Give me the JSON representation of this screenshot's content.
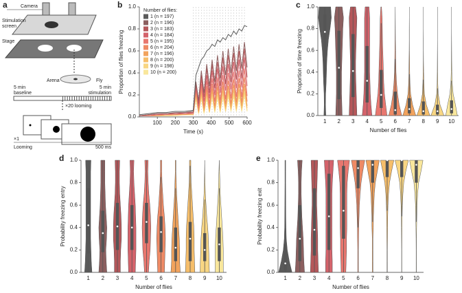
{
  "diagram": {
    "label": "a",
    "camera": "Camera",
    "screen_1": "Stimulation",
    "screen_2": "screen",
    "stage": "Stage",
    "arena": "Arena",
    "fly": "Fly",
    "baseline_1": "5 min",
    "baseline_2": "baseline",
    "stim_1": "5 min",
    "stim_2": "stimulation",
    "repeat": "×20 looming",
    "once": "×1",
    "looming": "Looming",
    "duration": "500 ms"
  },
  "chart_data": [
    {
      "type": "line",
      "label": "b",
      "xlabel": "Time (s)",
      "ylabel": "Proportion of flies freezing",
      "legend_title": "Number of flies:",
      "x": [
        0,
        50,
        100,
        150,
        200,
        250,
        300,
        315,
        330,
        345,
        360,
        375,
        390,
        405,
        420,
        435,
        450,
        465,
        480,
        495,
        510,
        525,
        540,
        555,
        570,
        585,
        600
      ],
      "xlim": [
        0,
        600
      ],
      "xticks": [
        100,
        200,
        300,
        400,
        500,
        600
      ],
      "ylim": [
        0,
        1
      ],
      "yticks": [
        {
          "value": 0,
          "label": "0.0"
        },
        0.2,
        0.4,
        0.6,
        0.8,
        {
          "value": 1,
          "label": "1.0"
        }
      ],
      "stimulus_x": [
        300,
        315,
        330,
        345,
        360,
        375,
        390,
        405,
        420,
        435,
        450,
        465,
        480,
        495,
        510,
        525,
        540,
        555,
        570,
        585
      ],
      "series": [
        {
          "name": "1 (n = 197)",
          "color": "#5a5a5a",
          "values": [
            0.02,
            0.03,
            0.04,
            0.04,
            0.05,
            0.05,
            0.06,
            0.38,
            0.45,
            0.52,
            0.55,
            0.6,
            0.62,
            0.66,
            0.64,
            0.7,
            0.68,
            0.72,
            0.7,
            0.75,
            0.73,
            0.78,
            0.75,
            0.8,
            0.78,
            0.83,
            0.82
          ]
        },
        {
          "name": "2 (n = 196)",
          "color": "#8c5f5f",
          "values": [
            0.01,
            0.02,
            0.03,
            0.03,
            0.04,
            0.04,
            0.05,
            0.32,
            0.15,
            0.42,
            0.22,
            0.48,
            0.28,
            0.52,
            0.32,
            0.56,
            0.35,
            0.6,
            0.38,
            0.62,
            0.4,
            0.64,
            0.42,
            0.66,
            0.44,
            0.68,
            0.45
          ]
        },
        {
          "name": "3 (n = 183)",
          "color": "#b5575a",
          "values": [
            0.01,
            0.02,
            0.03,
            0.03,
            0.03,
            0.04,
            0.04,
            0.3,
            0.12,
            0.38,
            0.18,
            0.44,
            0.22,
            0.48,
            0.26,
            0.5,
            0.28,
            0.54,
            0.3,
            0.56,
            0.32,
            0.58,
            0.34,
            0.6,
            0.35,
            0.62,
            0.36
          ]
        },
        {
          "name": "4 (n = 184)",
          "color": "#d4636b",
          "values": [
            0.01,
            0.02,
            0.02,
            0.03,
            0.03,
            0.03,
            0.04,
            0.28,
            0.1,
            0.34,
            0.14,
            0.38,
            0.17,
            0.42,
            0.2,
            0.44,
            0.22,
            0.46,
            0.24,
            0.48,
            0.25,
            0.5,
            0.26,
            0.52,
            0.27,
            0.54,
            0.28
          ]
        },
        {
          "name": "5 (n = 195)",
          "color": "#e8776f",
          "values": [
            0.01,
            0.01,
            0.02,
            0.02,
            0.03,
            0.03,
            0.03,
            0.26,
            0.08,
            0.3,
            0.1,
            0.33,
            0.12,
            0.35,
            0.14,
            0.36,
            0.15,
            0.38,
            0.16,
            0.4,
            0.17,
            0.41,
            0.18,
            0.42,
            0.18,
            0.44,
            0.19
          ]
        },
        {
          "name": "6 (n = 204)",
          "color": "#ee8a65",
          "values": [
            0.01,
            0.01,
            0.02,
            0.02,
            0.02,
            0.03,
            0.03,
            0.24,
            0.06,
            0.27,
            0.08,
            0.28,
            0.09,
            0.3,
            0.1,
            0.31,
            0.11,
            0.32,
            0.12,
            0.33,
            0.12,
            0.34,
            0.13,
            0.35,
            0.13,
            0.36,
            0.14
          ]
        },
        {
          "name": "7 (n = 196)",
          "color": "#f2a35d",
          "values": [
            0.01,
            0.01,
            0.01,
            0.02,
            0.02,
            0.02,
            0.03,
            0.22,
            0.05,
            0.24,
            0.06,
            0.25,
            0.07,
            0.26,
            0.08,
            0.27,
            0.08,
            0.28,
            0.09,
            0.28,
            0.09,
            0.29,
            0.1,
            0.3,
            0.1,
            0.3,
            0.1
          ]
        },
        {
          "name": "8 (n = 200)",
          "color": "#f6be6a",
          "values": [
            0.01,
            0.01,
            0.01,
            0.02,
            0.02,
            0.02,
            0.02,
            0.2,
            0.04,
            0.21,
            0.05,
            0.22,
            0.05,
            0.23,
            0.06,
            0.23,
            0.06,
            0.24,
            0.07,
            0.24,
            0.07,
            0.25,
            0.07,
            0.25,
            0.08,
            0.26,
            0.08
          ]
        },
        {
          "name": "9 (n = 198)",
          "color": "#f8d683",
          "values": [
            0.01,
            0.01,
            0.01,
            0.01,
            0.02,
            0.02,
            0.02,
            0.18,
            0.03,
            0.19,
            0.04,
            0.19,
            0.04,
            0.2,
            0.05,
            0.2,
            0.05,
            0.21,
            0.05,
            0.21,
            0.06,
            0.21,
            0.06,
            0.22,
            0.06,
            0.22,
            0.06
          ]
        },
        {
          "name": "10 (n = 200)",
          "color": "#f9e79c",
          "values": [
            0.01,
            0.01,
            0.01,
            0.01,
            0.01,
            0.02,
            0.02,
            0.16,
            0.03,
            0.17,
            0.03,
            0.17,
            0.04,
            0.18,
            0.04,
            0.18,
            0.04,
            0.18,
            0.05,
            0.19,
            0.05,
            0.19,
            0.05,
            0.19,
            0.05,
            0.2,
            0.05
          ]
        }
      ]
    },
    {
      "type": "violin",
      "label": "c",
      "xlabel": "Number of flies",
      "ylabel": "Proportion of time freezing",
      "categories": [
        "1",
        "2",
        "3",
        "4",
        "5",
        "6",
        "7",
        "8",
        "9",
        "10"
      ],
      "colors": [
        "#5a5a5a",
        "#8c5f5f",
        "#b5575a",
        "#d4636b",
        "#e8776f",
        "#ee8a65",
        "#f2a35d",
        "#f6be6a",
        "#f8d683",
        "#f9e79c"
      ],
      "ylim": [
        0,
        1
      ],
      "yticks": [
        {
          "value": 0,
          "label": "0.0"
        },
        0.2,
        0.4,
        0.6,
        0.8,
        {
          "value": 1,
          "label": "1.0"
        }
      ],
      "density_y": [
        0,
        0.1,
        0.2,
        0.3,
        0.4,
        0.5,
        0.6,
        0.7,
        0.8,
        0.9,
        1
      ],
      "density": [
        [
          0.15,
          0.1,
          0.12,
          0.2,
          0.25,
          0.3,
          0.4,
          0.55,
          0.8,
          1,
          0.9
        ],
        [
          0.5,
          0.45,
          0.4,
          0.4,
          0.4,
          0.45,
          0.5,
          0.55,
          0.6,
          0.7,
          0.5
        ],
        [
          0.6,
          0.55,
          0.5,
          0.45,
          0.4,
          0.4,
          0.45,
          0.5,
          0.55,
          0.6,
          0.4
        ],
        [
          0.75,
          0.6,
          0.5,
          0.45,
          0.4,
          0.4,
          0.4,
          0.4,
          0.4,
          0.4,
          0.3
        ],
        [
          0.9,
          0.7,
          0.5,
          0.4,
          0.35,
          0.3,
          0.25,
          0.2,
          0.18,
          0.15,
          0.05
        ],
        [
          1,
          0.6,
          0.35,
          0.2,
          0.12,
          0.08,
          0.05,
          0.03,
          0.02,
          0.01,
          0
        ],
        [
          1,
          0.5,
          0.2,
          0.1,
          0.06,
          0.04,
          0.02,
          0.01,
          0.01,
          0,
          0
        ],
        [
          1,
          0.45,
          0.15,
          0.08,
          0.04,
          0.02,
          0.01,
          0.01,
          0,
          0,
          0
        ],
        [
          1,
          0.4,
          0.12,
          0.05,
          0.03,
          0.02,
          0.01,
          0,
          0,
          0,
          0
        ],
        [
          0.9,
          0.6,
          0.25,
          0.1,
          0.05,
          0.03,
          0.02,
          0.01,
          0,
          0,
          0
        ]
      ],
      "medians": [
        0.77,
        0.44,
        0.41,
        0.32,
        0.19,
        0.05,
        0.06,
        0.04,
        0.04,
        0.06
      ],
      "q1": [
        0.35,
        0.15,
        0.17,
        0.12,
        0.07,
        0.01,
        0.02,
        0.01,
        0.01,
        0.02
      ],
      "q3": [
        0.93,
        0.78,
        0.75,
        0.64,
        0.42,
        0.22,
        0.16,
        0.13,
        0.1,
        0.14
      ],
      "whisker_low": [
        0,
        0,
        0,
        0,
        0,
        0,
        0,
        0,
        0,
        0
      ],
      "whisker_high": [
        1,
        1,
        1,
        1,
        0.85,
        0.52,
        0.38,
        0.33,
        0.25,
        0.32
      ]
    },
    {
      "type": "violin",
      "label": "d",
      "xlabel": "Number of flies",
      "ylabel": "Probability freezing entry",
      "categories": [
        "1",
        "2",
        "3",
        "4",
        "5",
        "6",
        "7",
        "8",
        "9",
        "10"
      ],
      "colors": [
        "#5a5a5a",
        "#8c5f5f",
        "#b5575a",
        "#d4636b",
        "#e8776f",
        "#ee8a65",
        "#f2a35d",
        "#f6be6a",
        "#f8d683",
        "#f9e79c"
      ],
      "ylim": [
        0,
        1
      ],
      "yticks": [
        {
          "value": 0,
          "label": "0.0"
        },
        0.2,
        0.4,
        0.6,
        0.8,
        {
          "value": 1,
          "label": "1.0"
        }
      ],
      "density_y": [
        0,
        0.1,
        0.2,
        0.3,
        0.4,
        0.5,
        0.6,
        0.7,
        0.8,
        0.9,
        1
      ],
      "density": [
        [
          0.55,
          0.45,
          0.4,
          0.35,
          0.35,
          0.35,
          0.35,
          0.35,
          0.35,
          0.35,
          0.4
        ],
        [
          0.6,
          0.5,
          0.45,
          0.55,
          0.6,
          0.5,
          0.4,
          0.35,
          0.3,
          0.3,
          0.3
        ],
        [
          0.45,
          0.45,
          0.5,
          0.6,
          0.6,
          0.55,
          0.45,
          0.35,
          0.3,
          0.3,
          0.35
        ],
        [
          0.5,
          0.55,
          0.6,
          0.6,
          0.6,
          0.55,
          0.5,
          0.4,
          0.3,
          0.25,
          0.3
        ],
        [
          0.3,
          0.4,
          0.55,
          0.6,
          0.65,
          0.6,
          0.5,
          0.35,
          0.25,
          0.2,
          0.25
        ],
        [
          0.5,
          0.55,
          0.6,
          0.65,
          0.6,
          0.5,
          0.35,
          0.25,
          0.15,
          0.1,
          0.1
        ],
        [
          0.7,
          0.6,
          0.6,
          0.55,
          0.45,
          0.35,
          0.25,
          0.15,
          0.1,
          0.05,
          0.05
        ],
        [
          0.7,
          0.65,
          0.6,
          0.6,
          0.55,
          0.45,
          0.35,
          0.25,
          0.15,
          0.1,
          0.1
        ],
        [
          0.7,
          0.65,
          0.6,
          0.55,
          0.45,
          0.3,
          0.2,
          0.1,
          0.05,
          0.02,
          0
        ],
        [
          0.6,
          0.6,
          0.6,
          0.55,
          0.45,
          0.35,
          0.25,
          0.15,
          0.1,
          0.05,
          0
        ]
      ],
      "medians": [
        0.42,
        0.35,
        0.41,
        0.4,
        0.45,
        0.36,
        0.22,
        0.3,
        0.2,
        0.25
      ],
      "q1": [
        0.17,
        0.18,
        0.2,
        0.2,
        0.26,
        0.18,
        0.1,
        0.1,
        0.1,
        0.1
      ],
      "q3": [
        0.75,
        0.55,
        0.62,
        0.6,
        0.62,
        0.5,
        0.4,
        0.45,
        0.35,
        0.4
      ],
      "whisker_low": [
        0,
        0,
        0,
        0,
        0,
        0,
        0,
        0,
        0,
        0
      ],
      "whisker_high": [
        1,
        1,
        1,
        1,
        1,
        0.85,
        0.75,
        0.95,
        0.65,
        0.75
      ]
    },
    {
      "type": "violin",
      "label": "e",
      "xlabel": "Number of flies",
      "ylabel": "Probability freezing exit",
      "categories": [
        "1",
        "2",
        "3",
        "4",
        "5",
        "6",
        "7",
        "8",
        "9",
        "10"
      ],
      "colors": [
        "#5a5a5a",
        "#8c5f5f",
        "#b5575a",
        "#d4636b",
        "#e8776f",
        "#ee8a65",
        "#f2a35d",
        "#f6be6a",
        "#f8d683",
        "#f9e79c"
      ],
      "ylim": [
        0,
        1
      ],
      "yticks": [
        {
          "value": 0,
          "label": "0.0"
        },
        0.2,
        0.4,
        0.6,
        0.8,
        {
          "value": 1,
          "label": "1.0"
        }
      ],
      "density_y": [
        0,
        0.1,
        0.2,
        0.3,
        0.4,
        0.5,
        0.6,
        0.7,
        0.8,
        0.9,
        1
      ],
      "density": [
        [
          1,
          0.6,
          0.3,
          0.15,
          0.1,
          0.08,
          0.07,
          0.06,
          0.05,
          0.05,
          0.05
        ],
        [
          0.7,
          0.6,
          0.55,
          0.5,
          0.4,
          0.3,
          0.25,
          0.2,
          0.2,
          0.25,
          0.35
        ],
        [
          0.6,
          0.55,
          0.5,
          0.5,
          0.45,
          0.4,
          0.35,
          0.35,
          0.4,
          0.45,
          0.5
        ],
        [
          0.5,
          0.5,
          0.45,
          0.45,
          0.45,
          0.45,
          0.45,
          0.45,
          0.5,
          0.6,
          0.7
        ],
        [
          0.35,
          0.4,
          0.45,
          0.45,
          0.5,
          0.5,
          0.5,
          0.5,
          0.55,
          0.7,
          0.9
        ],
        [
          0.05,
          0.05,
          0.05,
          0.08,
          0.1,
          0.15,
          0.2,
          0.3,
          0.45,
          0.7,
          1
        ],
        [
          0.05,
          0.05,
          0.05,
          0.05,
          0.1,
          0.12,
          0.18,
          0.25,
          0.4,
          0.7,
          1
        ],
        [
          0.03,
          0.03,
          0.03,
          0.05,
          0.06,
          0.08,
          0.12,
          0.2,
          0.35,
          0.65,
          1
        ],
        [
          0.02,
          0.02,
          0.02,
          0.03,
          0.04,
          0.06,
          0.1,
          0.18,
          0.3,
          0.6,
          1
        ],
        [
          0.02,
          0.02,
          0.02,
          0.03,
          0.05,
          0.08,
          0.12,
          0.2,
          0.35,
          0.7,
          1
        ]
      ],
      "medians": [
        0.08,
        0.3,
        0.38,
        0.5,
        0.55,
        0.93,
        0.96,
        1,
        1,
        0.96
      ],
      "q1": [
        0.02,
        0.1,
        0.15,
        0.2,
        0.3,
        0.75,
        0.8,
        0.85,
        0.85,
        0.8
      ],
      "q3": [
        0.25,
        0.6,
        0.75,
        0.88,
        0.95,
        1,
        1,
        1,
        1,
        1
      ],
      "whisker_low": [
        0,
        0,
        0,
        0,
        0,
        0.4,
        0.45,
        0.55,
        0.5,
        0.45
      ],
      "whisker_high": [
        1,
        1,
        1,
        1,
        1,
        1,
        1,
        1,
        1,
        1
      ]
    }
  ]
}
